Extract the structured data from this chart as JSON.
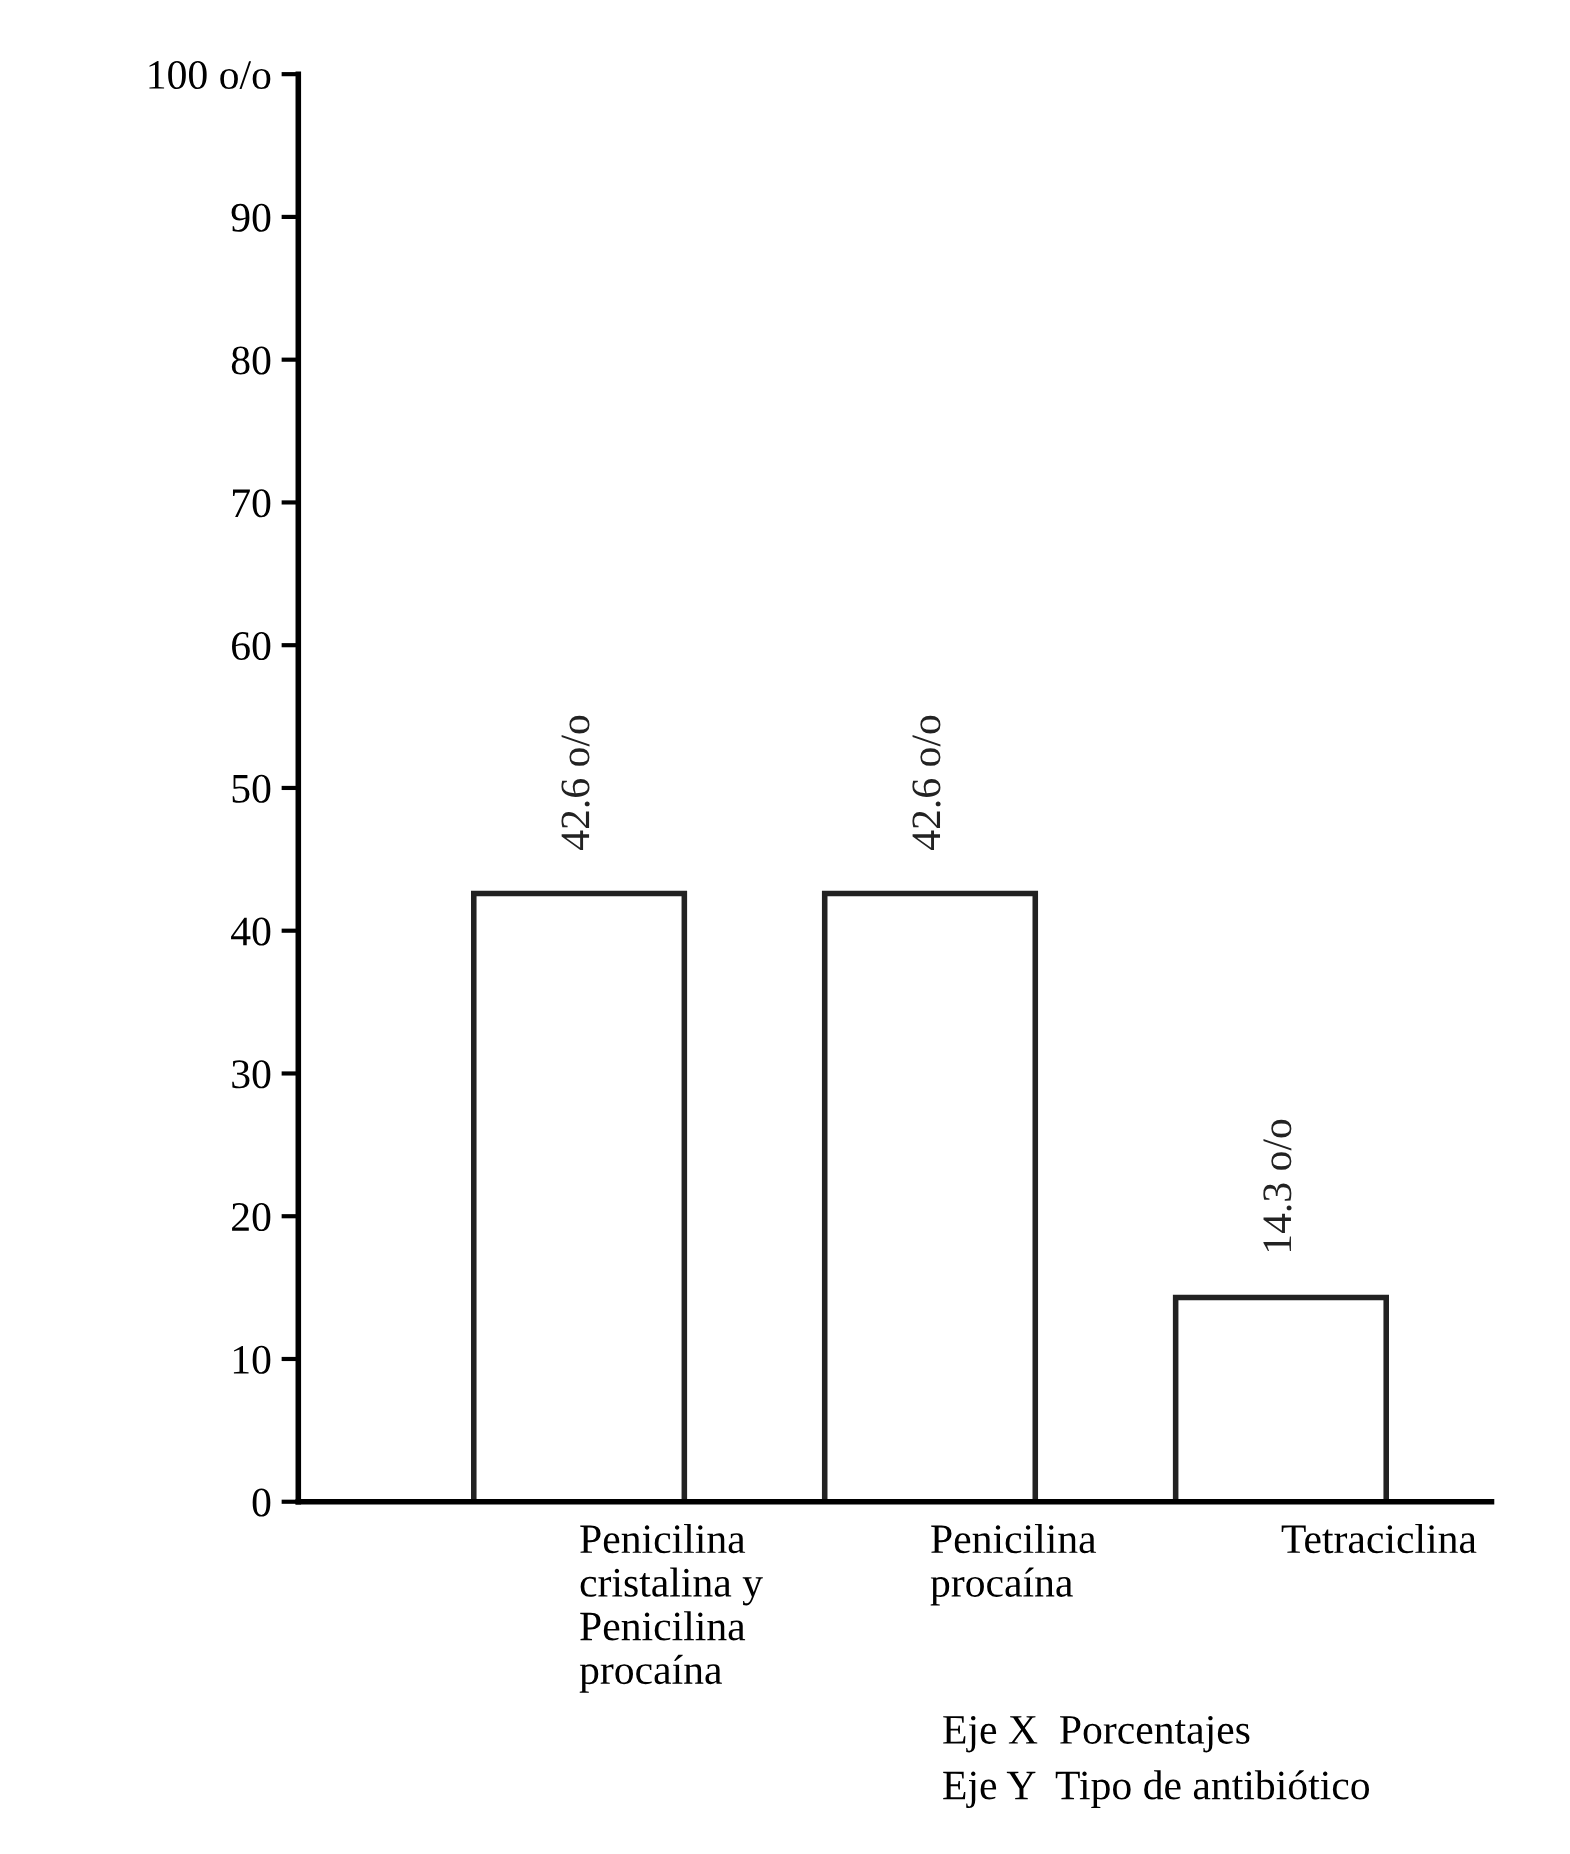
{
  "chart_data": {
    "type": "bar",
    "categories": [
      "Penicilina\ncristalina y\nPenicilina\nprocaína",
      "Penicilina\nprocaína",
      "Tetraciclina"
    ],
    "values": [
      42.6,
      42.6,
      14.3
    ],
    "value_labels": [
      "42.6 o/o",
      "42.6 o/o",
      "14.3 o/o"
    ],
    "color": "#ffffff",
    "ylim": [
      0,
      100
    ],
    "yticks": [
      0,
      10,
      20,
      30,
      40,
      50,
      60,
      70,
      80,
      90,
      {
        "value": 100,
        "label": "100 o/o"
      }
    ],
    "grid": false,
    "annotations": [
      "Eje X  Porcentajes",
      "Eje Y  Tipo de antibiótico"
    ]
  }
}
